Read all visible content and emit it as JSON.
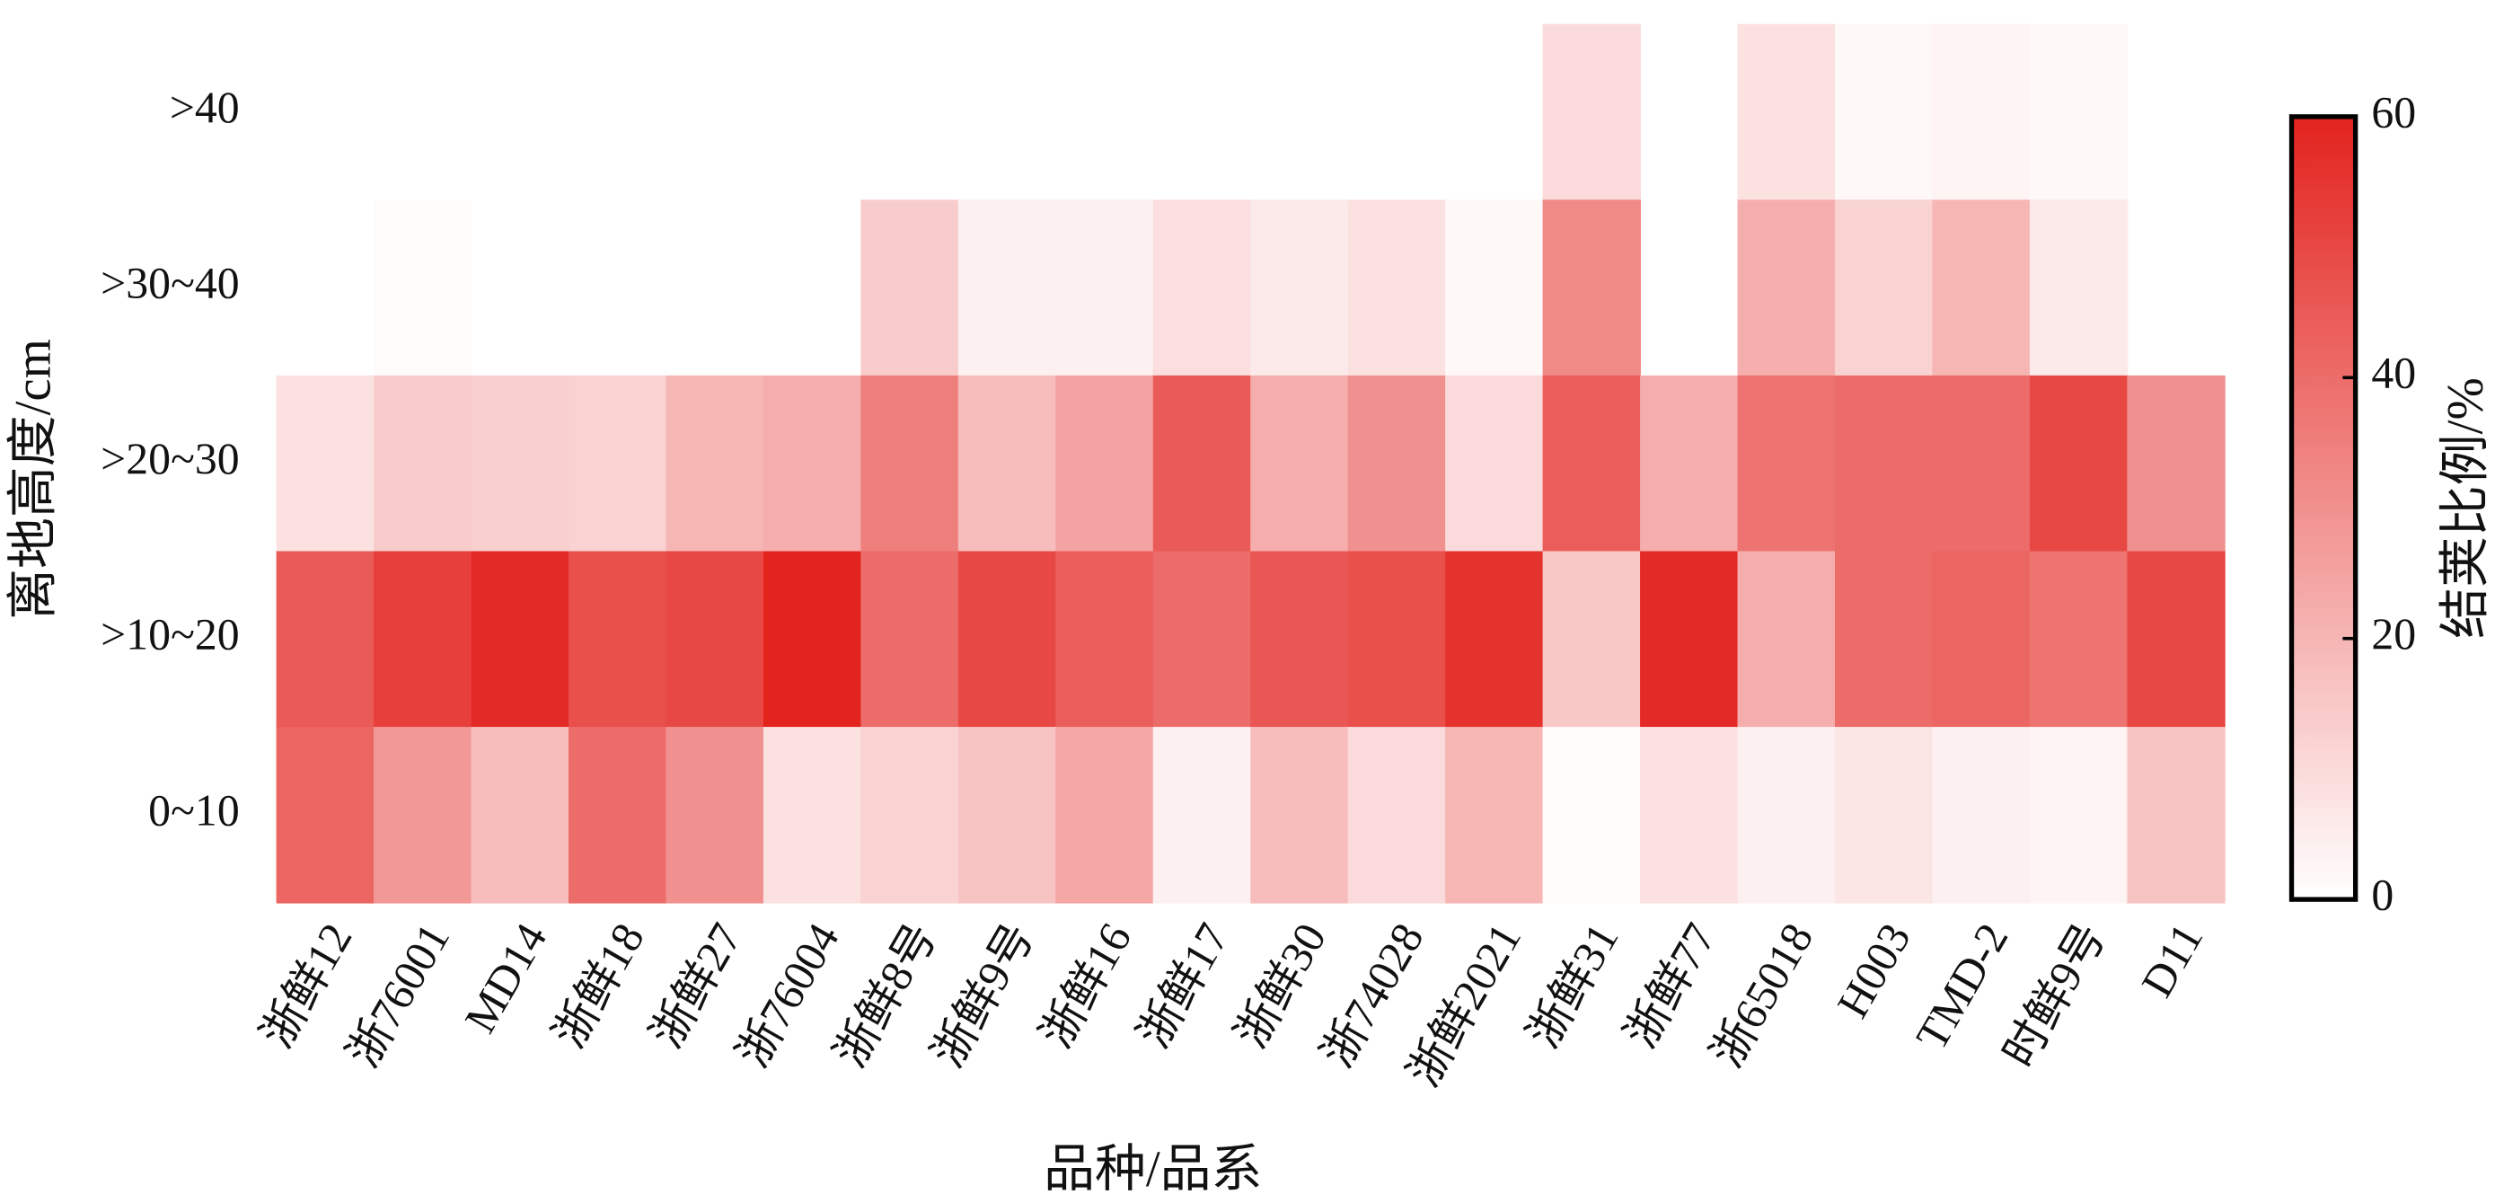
{
  "chart_data": {
    "type": "heatmap",
    "x_label": "品种/品系",
    "y_label": "离地高度/cm",
    "x_categories": [
      "浙鲜12",
      "浙76001",
      "MD14",
      "浙鲜18",
      "浙鲜27",
      "浙76004",
      "浙鲜8号",
      "浙鲜9号",
      "浙鲜16",
      "浙鲜17",
      "浙鲜30",
      "浙74028",
      "浙鲜2021",
      "浙鲜31",
      "浙鲜77",
      "浙65018",
      "H003",
      "TMD-2",
      "时鲜9号",
      "D11"
    ],
    "y_categories": [
      ">40",
      ">30~40",
      ">20~30",
      ">10~20",
      "0~10"
    ],
    "values": [
      [
        null,
        null,
        null,
        null,
        null,
        null,
        null,
        null,
        null,
        null,
        null,
        null,
        null,
        10,
        null,
        8,
        2,
        3,
        2,
        null
      ],
      [
        null,
        1,
        null,
        null,
        null,
        null,
        14,
        4,
        4,
        9,
        6,
        8,
        2,
        32,
        null,
        22,
        12,
        20,
        6,
        null
      ],
      [
        8,
        14,
        13,
        12,
        20,
        22,
        35,
        18,
        25,
        45,
        22,
        30,
        10,
        44,
        22,
        38,
        40,
        40,
        50,
        30
      ],
      [
        45,
        52,
        58,
        48,
        50,
        60,
        40,
        50,
        44,
        40,
        46,
        48,
        56,
        15,
        58,
        22,
        40,
        42,
        38,
        50
      ],
      [
        42,
        28,
        18,
        40,
        30,
        8,
        12,
        16,
        24,
        4,
        18,
        10,
        20,
        1,
        8,
        4,
        7,
        4,
        3,
        16
      ]
    ],
    "colormap": [
      "#ffffff",
      "#e3231e"
    ],
    "colorbar": {
      "label": "结荚比例/%",
      "lim": [
        0,
        60
      ],
      "ticks": [
        0,
        20,
        40,
        60
      ]
    }
  }
}
